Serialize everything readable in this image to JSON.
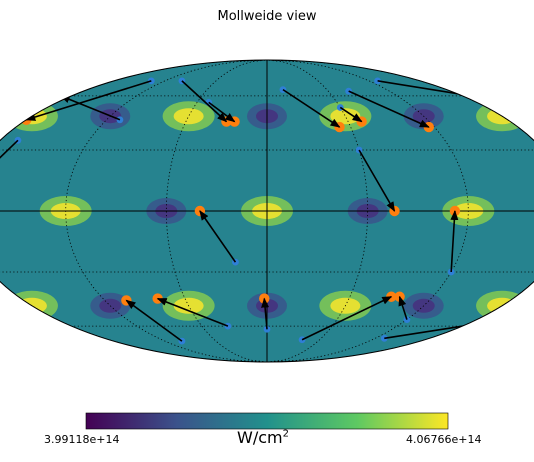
{
  "title": "Mollweide view",
  "colorbar": {
    "min_label": "3.99118e+14",
    "max_label": "4.06766e+14",
    "unit_base": "W/cm",
    "unit_exp": "2",
    "colormap": "viridis",
    "colors": [
      "#440154",
      "#3b528b",
      "#21918c",
      "#5ec962",
      "#fde725"
    ]
  },
  "chart_data": {
    "type": "heatmap",
    "projection": "mollweide",
    "title": "Mollweide view",
    "value_range": [
      399118000000000.0,
      406766000000000.0
    ],
    "unit": "W/cm2",
    "graticule": {
      "meridian_step_deg": 30,
      "parallel_step_deg": 30,
      "style": "dotted"
    },
    "field_sources": {
      "bright": [
        [
          -150,
          48
        ],
        [
          -90,
          48
        ],
        [
          -30,
          48
        ],
        [
          30,
          48
        ],
        [
          90,
          48
        ],
        [
          150,
          48
        ],
        [
          -120,
          0
        ],
        [
          -60,
          0
        ],
        [
          0,
          0
        ],
        [
          60,
          0
        ],
        [
          120,
          0
        ],
        [
          180,
          0
        ],
        [
          -150,
          -48
        ],
        [
          -90,
          -48
        ],
        [
          -30,
          -48
        ],
        [
          30,
          -48
        ],
        [
          90,
          -48
        ],
        [
          150,
          -48
        ]
      ],
      "dark": [
        [
          -180,
          48
        ],
        [
          -120,
          48
        ],
        [
          -60,
          48
        ],
        [
          0,
          48
        ],
        [
          60,
          48
        ],
        [
          120,
          48
        ],
        [
          -150,
          0
        ],
        [
          -90,
          0
        ],
        [
          -30,
          0
        ],
        [
          30,
          0
        ],
        [
          90,
          0
        ],
        [
          150,
          0
        ],
        [
          -180,
          -48
        ],
        [
          -120,
          -48
        ],
        [
          -60,
          -48
        ],
        [
          0,
          -48
        ],
        [
          60,
          -48
        ],
        [
          120,
          -48
        ]
      ]
    },
    "arrows": [
      {
        "from": [
          -115,
          66
        ],
        "to": [
          -135,
          45
        ]
      },
      {
        "from": [
          -145,
          58
        ],
        "to": [
          -155,
          45
        ]
      },
      {
        "from": [
          -125,
          62
        ],
        "to": [
          -168,
          45
        ]
      },
      {
        "from": [
          -68,
          70
        ],
        "to": [
          -90,
          46
        ]
      },
      {
        "from": [
          -55,
          46
        ],
        "to": [
          -95,
          60
        ]
      },
      {
        "from": [
          -50,
          70
        ],
        "to": [
          -15,
          45
        ]
      },
      {
        "from": [
          -25,
          56
        ],
        "to": [
          -12,
          45
        ]
      },
      {
        "from": [
          8,
          64
        ],
        "to": [
          26,
          42
        ]
      },
      {
        "from": [
          30,
          53
        ],
        "to": [
          35,
          45
        ]
      },
      {
        "from": [
          40,
          63
        ],
        "to": [
          58,
          42
        ]
      },
      {
        "from": [
          65,
          70
        ],
        "to": [
          140,
          43
        ]
      },
      {
        "from": [
          118,
          57
        ],
        "to": [
          150,
          46
        ]
      },
      {
        "from": [
          110,
          70
        ],
        "to": [
          105,
          48
        ]
      },
      {
        "from": [
          138,
          68
        ],
        "to": [
          126,
          43
        ]
      },
      {
        "from": [
          160,
          58
        ],
        "to": [
          135,
          45
        ]
      },
      {
        "from": [
          -100,
          20
        ],
        "to": [
          -142,
          0
        ]
      },
      {
        "from": [
          -84,
          35
        ],
        "to": [
          -96,
          0
        ]
      },
      {
        "from": [
          -175,
          25
        ],
        "to": [
          -192,
          0
        ]
      },
      {
        "from": [
          -130,
          -15
        ],
        "to": [
          -112,
          0
        ]
      },
      {
        "from": [
          -10,
          -25
        ],
        "to": [
          -20,
          0
        ]
      },
      {
        "from": [
          30,
          30
        ],
        "to": [
          38,
          0
        ]
      },
      {
        "from": [
          60,
          -30
        ],
        "to": [
          56,
          0
        ]
      },
      {
        "from": [
          102,
          32
        ],
        "to": [
          98,
          0
        ]
      },
      {
        "from": [
          120,
          -30
        ],
        "to": [
          122,
          0
        ]
      },
      {
        "from": [
          168,
          22
        ],
        "to": [
          160,
          0
        ]
      },
      {
        "from": [
          -150,
          -20
        ],
        "to": [
          -132,
          -44
        ]
      },
      {
        "from": [
          -110,
          -60
        ],
        "to": [
          -101,
          -45
        ]
      },
      {
        "from": [
          -150,
          -65
        ],
        "to": [
          -165,
          -44
        ]
      },
      {
        "from": [
          -105,
          -56
        ],
        "to": [
          -148,
          -44
        ]
      },
      {
        "from": [
          -50,
          -70
        ],
        "to": [
          -52,
          -45
        ]
      },
      {
        "from": [
          -18,
          -60
        ],
        "to": [
          -40,
          -44
        ]
      },
      {
        "from": [
          0,
          -62
        ],
        "to": [
          -1,
          -44
        ]
      },
      {
        "from": [
          20,
          -69
        ],
        "to": [
          45,
          -43
        ]
      },
      {
        "from": [
          60,
          -56
        ],
        "to": [
          48,
          -43
        ]
      },
      {
        "from": [
          65,
          -68
        ],
        "to": [
          142,
          -42
        ]
      },
      {
        "from": [
          120,
          -58
        ],
        "to": [
          93,
          -43
        ]
      },
      {
        "from": [
          122,
          -68
        ],
        "to": [
          183,
          -42
        ]
      },
      {
        "from": [
          170,
          -65
        ],
        "to": [
          151,
          -43
        ]
      }
    ]
  }
}
